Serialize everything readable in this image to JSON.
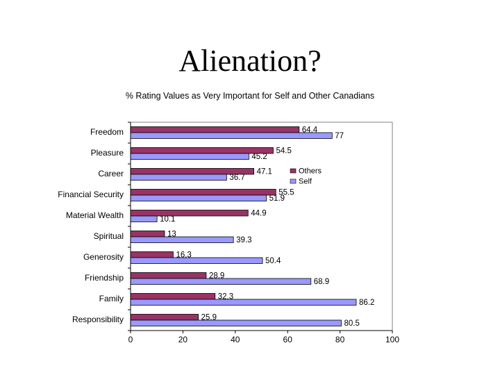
{
  "slide": {
    "title": "Alienation?"
  },
  "chart_data": {
    "type": "bar",
    "orientation": "horizontal",
    "title": "% Rating Values as Very Important for Self and Other Canadians",
    "categories": [
      "Freedom",
      "Pleasure",
      "Career",
      "Financial Security",
      "Material Wealth",
      "Spiritual",
      "Generosity",
      "Friendship",
      "Family",
      "Responsibility"
    ],
    "series": [
      {
        "name": "Others",
        "color": "#993366",
        "values": [
          64.4,
          54.5,
          47.1,
          55.5,
          44.9,
          13,
          16.3,
          28.9,
          32.3,
          25.9
        ]
      },
      {
        "name": "Self",
        "color": "#9999ff",
        "values": [
          77,
          45.2,
          36.7,
          51.9,
          10.1,
          39.3,
          50.4,
          68.9,
          86.2,
          80.5
        ]
      }
    ],
    "xlim": [
      0,
      100
    ],
    "xticks": [
      "0",
      "20",
      "40",
      "60",
      "80",
      "100"
    ],
    "legend_position": "right",
    "grid": false
  }
}
